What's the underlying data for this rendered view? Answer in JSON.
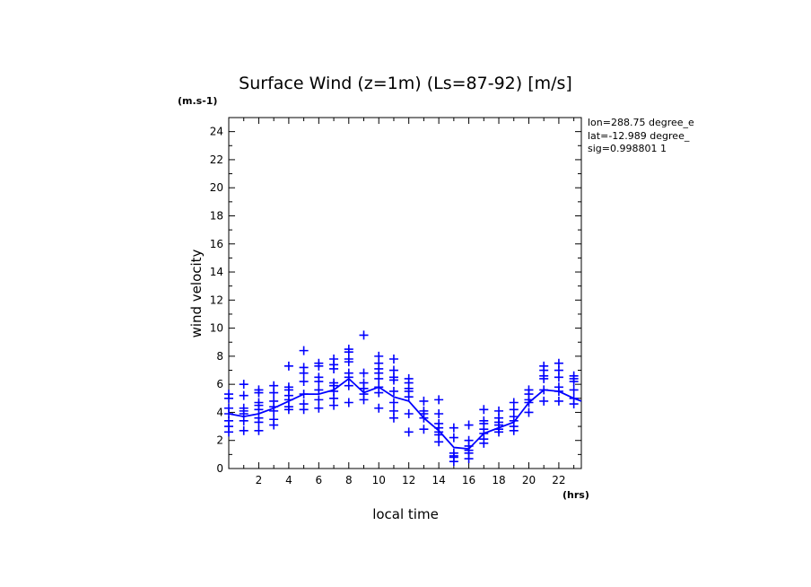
{
  "chart_data": {
    "type": "scatter",
    "title": "Surface Wind (z=1m) (Ls=87-92) [m/s]",
    "ylabel": "wind velocity",
    "yunits": "(m.s-1)",
    "xlabel": "local time",
    "xunits": "(hrs)",
    "info": [
      "lon=288.75 degree_e",
      "lat=-12.989 degree_",
      "sig=0.998801 1"
    ],
    "xlim": [
      0,
      23.5
    ],
    "ylim": [
      0,
      25
    ],
    "xticks": [
      2,
      4,
      6,
      8,
      10,
      12,
      14,
      16,
      18,
      20,
      22
    ],
    "yticks": [
      0,
      2,
      4,
      6,
      8,
      10,
      12,
      14,
      16,
      18,
      20,
      22,
      24
    ],
    "color": "#0000ff",
    "series": [
      {
        "type": "line",
        "x": [
          0,
          1,
          2,
          3,
          4,
          5,
          6,
          7,
          8,
          9,
          10,
          11,
          12,
          13,
          14,
          15,
          16,
          17,
          18,
          19,
          20,
          21,
          22,
          23,
          23.5
        ],
        "y": [
          3.9,
          3.7,
          3.9,
          4.3,
          4.8,
          5.3,
          5.3,
          5.6,
          6.4,
          5.4,
          5.8,
          5.1,
          4.8,
          3.6,
          2.7,
          1.5,
          1.4,
          2.5,
          2.9,
          3.3,
          4.7,
          5.6,
          5.5,
          5.0,
          4.8
        ]
      },
      {
        "type": "scatter",
        "marker": "+",
        "points": [
          [
            0,
            2.6
          ],
          [
            0,
            3.0
          ],
          [
            0,
            3.4
          ],
          [
            0,
            3.9
          ],
          [
            0,
            4.3
          ],
          [
            0,
            5.0
          ],
          [
            0,
            5.3
          ],
          [
            1,
            2.7
          ],
          [
            1,
            3.4
          ],
          [
            1,
            3.9
          ],
          [
            1,
            4.1
          ],
          [
            1,
            4.3
          ],
          [
            1,
            5.2
          ],
          [
            1,
            6.0
          ],
          [
            2,
            2.7
          ],
          [
            2,
            3.3
          ],
          [
            2,
            3.6
          ],
          [
            2,
            4.2
          ],
          [
            2,
            4.5
          ],
          [
            2,
            4.7
          ],
          [
            2,
            5.4
          ],
          [
            2,
            5.6
          ],
          [
            3,
            3.1
          ],
          [
            3,
            3.5
          ],
          [
            3,
            4.1
          ],
          [
            3,
            4.4
          ],
          [
            3,
            4.8
          ],
          [
            3,
            5.4
          ],
          [
            3,
            5.9
          ],
          [
            4,
            4.2
          ],
          [
            4,
            4.4
          ],
          [
            4,
            4.9
          ],
          [
            4,
            5.2
          ],
          [
            4,
            5.6
          ],
          [
            4,
            5.8
          ],
          [
            4,
            7.3
          ],
          [
            5,
            4.2
          ],
          [
            5,
            4.6
          ],
          [
            5,
            5.3
          ],
          [
            5,
            6.2
          ],
          [
            5,
            6.8
          ],
          [
            5,
            7.2
          ],
          [
            5,
            8.4
          ],
          [
            6,
            4.3
          ],
          [
            6,
            4.9
          ],
          [
            6,
            5.6
          ],
          [
            6,
            6.2
          ],
          [
            6,
            6.5
          ],
          [
            6,
            7.3
          ],
          [
            6,
            7.5
          ],
          [
            7,
            4.5
          ],
          [
            7,
            5.0
          ],
          [
            7,
            5.5
          ],
          [
            7,
            5.9
          ],
          [
            7,
            6.1
          ],
          [
            7,
            7.1
          ],
          [
            7,
            7.4
          ],
          [
            7,
            7.8
          ],
          [
            8,
            4.7
          ],
          [
            8,
            5.9
          ],
          [
            8,
            6.5
          ],
          [
            8,
            6.8
          ],
          [
            8,
            7.6
          ],
          [
            8,
            7.8
          ],
          [
            8,
            8.3
          ],
          [
            8,
            8.5
          ],
          [
            9,
            4.9
          ],
          [
            9,
            5.3
          ],
          [
            9,
            5.7
          ],
          [
            9,
            6.1
          ],
          [
            9,
            6.8
          ],
          [
            9,
            9.5
          ],
          [
            10,
            4.3
          ],
          [
            10,
            5.4
          ],
          [
            10,
            5.8
          ],
          [
            10,
            6.4
          ],
          [
            10,
            6.8
          ],
          [
            10,
            7.1
          ],
          [
            10,
            7.5
          ],
          [
            10,
            8.0
          ],
          [
            11,
            3.6
          ],
          [
            11,
            4.1
          ],
          [
            11,
            4.7
          ],
          [
            11,
            5.5
          ],
          [
            11,
            6.3
          ],
          [
            11,
            6.5
          ],
          [
            11,
            7.0
          ],
          [
            11,
            7.8
          ],
          [
            12,
            2.6
          ],
          [
            12,
            3.9
          ],
          [
            12,
            5.1
          ],
          [
            12,
            5.5
          ],
          [
            12,
            5.7
          ],
          [
            12,
            6.1
          ],
          [
            12,
            6.4
          ],
          [
            13,
            2.8
          ],
          [
            13,
            3.6
          ],
          [
            13,
            3.9
          ],
          [
            13,
            4.1
          ],
          [
            13,
            4.8
          ],
          [
            14,
            1.9
          ],
          [
            14,
            2.4
          ],
          [
            14,
            2.6
          ],
          [
            14,
            2.9
          ],
          [
            14,
            3.2
          ],
          [
            14,
            3.9
          ],
          [
            14,
            4.9
          ],
          [
            15,
            0.5
          ],
          [
            15,
            0.8
          ],
          [
            15,
            0.9
          ],
          [
            15,
            1.1
          ],
          [
            15,
            2.2
          ],
          [
            15,
            2.9
          ],
          [
            16,
            0.7
          ],
          [
            16,
            1.1
          ],
          [
            16,
            1.3
          ],
          [
            16,
            1.6
          ],
          [
            16,
            2.0
          ],
          [
            16,
            3.1
          ],
          [
            17,
            1.8
          ],
          [
            17,
            2.1
          ],
          [
            17,
            2.5
          ],
          [
            17,
            2.8
          ],
          [
            17,
            3.2
          ],
          [
            17,
            3.4
          ],
          [
            17,
            4.2
          ],
          [
            18,
            2.6
          ],
          [
            18,
            2.8
          ],
          [
            18,
            3.1
          ],
          [
            18,
            3.3
          ],
          [
            18,
            3.6
          ],
          [
            18,
            4.1
          ],
          [
            19,
            2.7
          ],
          [
            19,
            3.0
          ],
          [
            19,
            3.4
          ],
          [
            19,
            3.7
          ],
          [
            19,
            4.2
          ],
          [
            19,
            4.7
          ],
          [
            20,
            4.0
          ],
          [
            20,
            4.7
          ],
          [
            20,
            4.9
          ],
          [
            20,
            5.3
          ],
          [
            20,
            5.6
          ],
          [
            21,
            4.8
          ],
          [
            21,
            5.6
          ],
          [
            21,
            6.4
          ],
          [
            21,
            6.6
          ],
          [
            21,
            7.0
          ],
          [
            21,
            7.3
          ],
          [
            22,
            4.8
          ],
          [
            22,
            5.5
          ],
          [
            22,
            5.8
          ],
          [
            22,
            6.5
          ],
          [
            22,
            7.0
          ],
          [
            22,
            7.5
          ],
          [
            23,
            4.6
          ],
          [
            23,
            5.0
          ],
          [
            23,
            5.6
          ],
          [
            23,
            6.2
          ],
          [
            23,
            6.4
          ],
          [
            23,
            6.6
          ]
        ]
      }
    ]
  }
}
